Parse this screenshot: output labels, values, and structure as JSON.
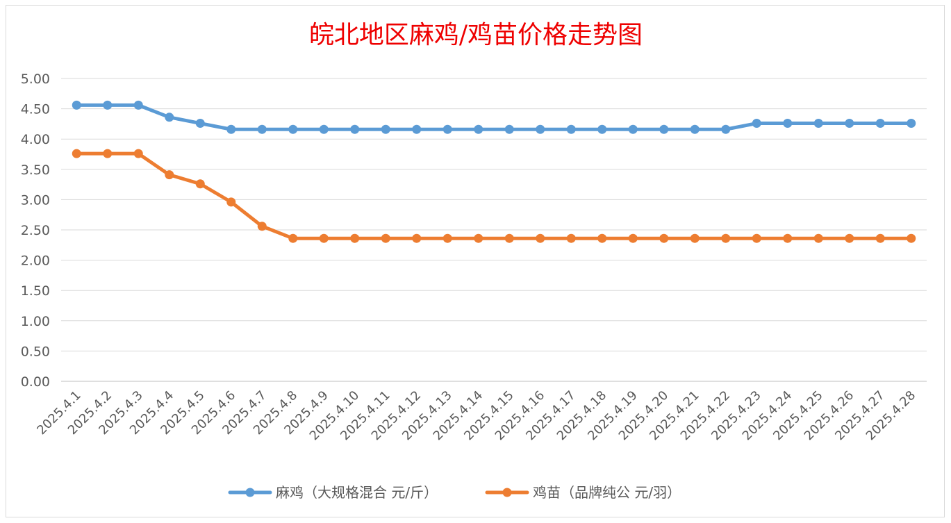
{
  "chart_data": {
    "type": "line",
    "title": "皖北地区麻鸡/鸡苗价格走势图",
    "xlabel": "",
    "ylabel": "",
    "ylim": [
      0,
      5
    ],
    "yticks": [
      "0.00",
      "0.50",
      "1.00",
      "1.50",
      "2.00",
      "2.50",
      "3.00",
      "3.50",
      "4.00",
      "4.50",
      "5.00"
    ],
    "grid": true,
    "legend_position": "bottom",
    "categories": [
      "2025.4.1",
      "2025.4.2",
      "2025.4.3",
      "2025.4.4",
      "2025.4.5",
      "2025.4.6",
      "2025.4.7",
      "2025.4.8",
      "2025.4.9",
      "2025.4.10",
      "2025.4.11",
      "2025.4.12",
      "2025.4.13",
      "2025.4.14",
      "2025.4.15",
      "2025.4.16",
      "2025.4.17",
      "2025.4.18",
      "2025.4.19",
      "2025.4.20",
      "2025.4.21",
      "2025.4.22",
      "2025.4.23",
      "2025.4.24",
      "2025.4.25",
      "2025.4.26",
      "2025.4.27",
      "2025.4.28"
    ],
    "series": [
      {
        "name": "麻鸡（大规格混合 元/斤）",
        "color": "#5b9bd5",
        "values": [
          4.56,
          4.56,
          4.56,
          4.36,
          4.26,
          4.16,
          4.16,
          4.16,
          4.16,
          4.16,
          4.16,
          4.16,
          4.16,
          4.16,
          4.16,
          4.16,
          4.16,
          4.16,
          4.16,
          4.16,
          4.16,
          4.16,
          4.26,
          4.26,
          4.26,
          4.26,
          4.26,
          4.26
        ]
      },
      {
        "name": "鸡苗（品牌纯公 元/羽）",
        "color": "#ed7d31",
        "values": [
          3.76,
          3.76,
          3.76,
          3.41,
          3.26,
          2.96,
          2.56,
          2.36,
          2.36,
          2.36,
          2.36,
          2.36,
          2.36,
          2.36,
          2.36,
          2.36,
          2.36,
          2.36,
          2.36,
          2.36,
          2.36,
          2.36,
          2.36,
          2.36,
          2.36,
          2.36,
          2.36,
          2.36
        ]
      }
    ]
  }
}
